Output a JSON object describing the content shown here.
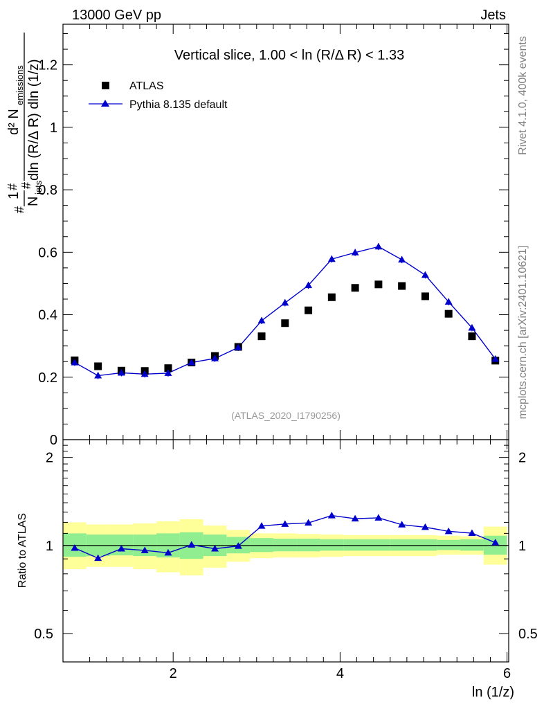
{
  "header": {
    "left": "13000 GeV pp",
    "right": "Jets",
    "side_right": "Rivet 4.1.0,  400k events",
    "side_right_lower": "mcplots.cern.ch [arXiv:2401.10621]",
    "watermark": "(ATLAS_2020_I1790256)"
  },
  "colors": {
    "atlas": "#000000",
    "pythia": "#0000cc",
    "band_inner": "#90ee90",
    "band_outer": "#ffff99"
  },
  "chart_data": [
    {
      "type": "scatter",
      "title": "Vertical slice, 1.00 < ln (R/Δ R) < 1.33",
      "xlabel": "ln (1/z)",
      "ylabel_parts": {
        "frac_num": "1",
        "frac_den": "N",
        "frac_den_sub": "jets",
        "d2": "d² N",
        "d2_sub": "emissions",
        "den": "dln (R/Δ R) dln (1/z)",
        "hash1": "#",
        "hash2": "#",
        "hash3": "#"
      },
      "xlim": [
        0.68,
        6.02
      ],
      "ylim": [
        0,
        1.33
      ],
      "yticks": [
        {
          "v": 0.2,
          "label": "0.2"
        },
        {
          "v": 0.4,
          "label": "0.4"
        },
        {
          "v": 0.6,
          "label": "0.6"
        },
        {
          "v": 0.8,
          "label": "0.8"
        },
        {
          "v": 1.0,
          "label": "1"
        },
        {
          "v": 1.2,
          "label": "1.2"
        },
        {
          "v": 0.0,
          "label": "0"
        }
      ],
      "legend": [
        {
          "name": "ATLAS",
          "marker": "square"
        },
        {
          "name": "Pythia 8.135 default",
          "marker": "triangle-line"
        }
      ],
      "x": [
        0.82,
        1.1,
        1.38,
        1.66,
        1.94,
        2.22,
        2.5,
        2.78,
        3.06,
        3.34,
        3.62,
        3.9,
        4.18,
        4.46,
        4.74,
        5.02,
        5.3,
        5.58,
        5.86
      ],
      "series": [
        {
          "name": "ATLAS",
          "values": [
            0.254,
            0.235,
            0.221,
            0.22,
            0.229,
            0.247,
            0.268,
            0.297,
            0.331,
            0.373,
            0.414,
            0.456,
            0.486,
            0.497,
            0.492,
            0.459,
            0.403,
            0.331,
            0.253
          ]
        },
        {
          "name": "Pythia 8.135 default",
          "values": [
            0.247,
            0.205,
            0.214,
            0.21,
            0.213,
            0.247,
            0.26,
            0.295,
            0.381,
            0.438,
            0.494,
            0.578,
            0.599,
            0.618,
            0.576,
            0.527,
            0.441,
            0.358,
            0.258
          ]
        }
      ]
    },
    {
      "type": "scatter",
      "title": "",
      "xlabel": "ln (1/z)",
      "ylabel": "Ratio to ATLAS",
      "xlim": [
        0.68,
        6.02
      ],
      "ylim": [
        0.4,
        2.3
      ],
      "xticks": [
        {
          "v": 2,
          "label": "2"
        },
        {
          "v": 4,
          "label": "4"
        },
        {
          "v": 6,
          "label": "6"
        }
      ],
      "yticks": [
        {
          "v": 0.5,
          "label": "0.5"
        },
        {
          "v": 1,
          "label": "1"
        },
        {
          "v": 2,
          "label": "2"
        }
      ],
      "bin_edges": [
        0.68,
        0.96,
        1.24,
        1.52,
        1.8,
        2.08,
        2.36,
        2.64,
        2.92,
        3.2,
        3.48,
        3.76,
        4.04,
        4.32,
        4.6,
        4.88,
        5.16,
        5.44,
        5.72,
        6.0
      ],
      "band_inner": [
        [
          0.915,
          1.1
        ],
        [
          0.92,
          1.09
        ],
        [
          0.925,
          1.09
        ],
        [
          0.92,
          1.09
        ],
        [
          0.91,
          1.1
        ],
        [
          0.9,
          1.11
        ],
        [
          0.92,
          1.09
        ],
        [
          0.94,
          1.07
        ],
        [
          0.95,
          1.06
        ],
        [
          0.955,
          1.055
        ],
        [
          0.955,
          1.055
        ],
        [
          0.96,
          1.05
        ],
        [
          0.96,
          1.05
        ],
        [
          0.96,
          1.05
        ],
        [
          0.96,
          1.05
        ],
        [
          0.96,
          1.05
        ],
        [
          0.965,
          1.045
        ],
        [
          0.96,
          1.05
        ],
        [
          0.93,
          1.08
        ]
      ],
      "band_outer": [
        [
          0.83,
          1.2
        ],
        [
          0.845,
          1.18
        ],
        [
          0.845,
          1.18
        ],
        [
          0.83,
          1.19
        ],
        [
          0.81,
          1.21
        ],
        [
          0.79,
          1.23
        ],
        [
          0.84,
          1.17
        ],
        [
          0.88,
          1.13
        ],
        [
          0.905,
          1.1
        ],
        [
          0.91,
          1.1
        ],
        [
          0.91,
          1.095
        ],
        [
          0.915,
          1.09
        ],
        [
          0.92,
          1.085
        ],
        [
          0.92,
          1.085
        ],
        [
          0.92,
          1.085
        ],
        [
          0.92,
          1.085
        ],
        [
          0.93,
          1.08
        ],
        [
          0.93,
          1.075
        ],
        [
          0.86,
          1.16
        ]
      ],
      "series": [
        {
          "name": "Pythia 8.135 default",
          "values": [
            0.98,
            0.905,
            0.975,
            0.962,
            0.944,
            1.005,
            0.975,
            0.996,
            1.166,
            1.184,
            1.195,
            1.266,
            1.235,
            1.243,
            1.178,
            1.155,
            1.118,
            1.102,
            1.023
          ]
        }
      ]
    }
  ]
}
